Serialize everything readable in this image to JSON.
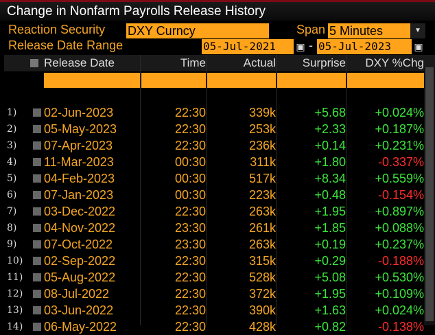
{
  "window": {
    "title": "Change in Nonfarm Payrolls Release History"
  },
  "controls": {
    "reaction_label": "Reaction Security",
    "reaction_value": "DXY Curncy",
    "span_label": "Span",
    "span_value": "5 Minutes",
    "range_label": "Release Date Range",
    "range_start": "05-Jul-2021",
    "range_sep": "-",
    "range_end": "05-Jul-2023"
  },
  "table": {
    "headers": {
      "date": "Release Date",
      "time": "Time",
      "actual": "Actual",
      "surprise": "Surprise",
      "chg": "DXY %Chg"
    },
    "rows": [
      {
        "num": "1)",
        "date": "02-Jun-2023",
        "time": "22:30",
        "actual": "339k",
        "surprise": "+5.68",
        "chg": "+0.024%",
        "dir": "pos"
      },
      {
        "num": "2)",
        "date": "05-May-2023",
        "time": "22:30",
        "actual": "253k",
        "surprise": "+2.33",
        "chg": "+0.187%",
        "dir": "pos"
      },
      {
        "num": "3)",
        "date": "07-Apr-2023",
        "time": "22:30",
        "actual": "236k",
        "surprise": "+0.14",
        "chg": "+0.231%",
        "dir": "pos"
      },
      {
        "num": "4)",
        "date": "11-Mar-2023",
        "time": "00:30",
        "actual": "311k",
        "surprise": "+1.80",
        "chg": "-0.337%",
        "dir": "neg"
      },
      {
        "num": "5)",
        "date": "04-Feb-2023",
        "time": "00:30",
        "actual": "517k",
        "surprise": "+8.34",
        "chg": "+0.559%",
        "dir": "pos"
      },
      {
        "num": "6)",
        "date": "07-Jan-2023",
        "time": "00:30",
        "actual": "223k",
        "surprise": "+0.48",
        "chg": "-0.154%",
        "dir": "neg"
      },
      {
        "num": "7)",
        "date": "03-Dec-2022",
        "time": "22:30",
        "actual": "263k",
        "surprise": "+1.95",
        "chg": "+0.897%",
        "dir": "pos"
      },
      {
        "num": "8)",
        "date": "04-Nov-2022",
        "time": "23:30",
        "actual": "261k",
        "surprise": "+1.85",
        "chg": "+0.088%",
        "dir": "pos"
      },
      {
        "num": "9)",
        "date": "07-Oct-2022",
        "time": "23:30",
        "actual": "263k",
        "surprise": "+0.19",
        "chg": "+0.237%",
        "dir": "pos"
      },
      {
        "num": "10)",
        "date": "02-Sep-2022",
        "time": "22:30",
        "actual": "315k",
        "surprise": "+0.29",
        "chg": "-0.188%",
        "dir": "neg"
      },
      {
        "num": "11)",
        "date": "05-Aug-2022",
        "time": "22:30",
        "actual": "528k",
        "surprise": "+5.08",
        "chg": "+0.530%",
        "dir": "pos"
      },
      {
        "num": "12)",
        "date": "08-Jul-2022",
        "time": "22:30",
        "actual": "372k",
        "surprise": "+1.95",
        "chg": "+0.109%",
        "dir": "pos"
      },
      {
        "num": "13)",
        "date": "03-Jun-2022",
        "time": "22:30",
        "actual": "390k",
        "surprise": "+1.63",
        "chg": "+0.024%",
        "dir": "pos"
      },
      {
        "num": "14)",
        "date": "06-May-2022",
        "time": "22:30",
        "actual": "428k",
        "surprise": "+0.82",
        "chg": "-0.138%",
        "dir": "neg"
      }
    ]
  },
  "colors": {
    "accent": "#ffa31a",
    "positive": "#3ce63c",
    "negative": "#ff2b2b",
    "title_border": "#7a0b14"
  },
  "icons": {
    "dropdown": "triangle-down-icon",
    "calendar": "calendar-icon"
  }
}
